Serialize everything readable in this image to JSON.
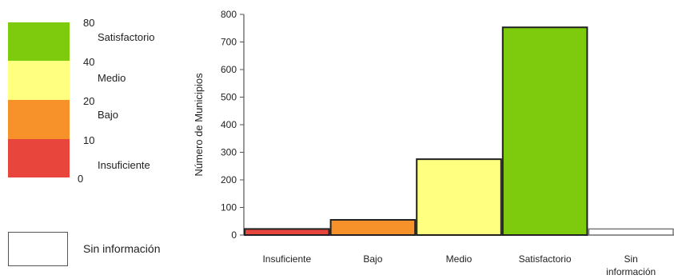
{
  "legend": {
    "bins": [
      {
        "label": "Satisfactorio",
        "upper": "80",
        "color": "#7dcb0c"
      },
      {
        "label": "Medio",
        "upper": "40",
        "color": "#ffff80"
      },
      {
        "label": "Bajo",
        "upper": "20",
        "color": "#f7922b"
      },
      {
        "label": "Insuficiente",
        "upper": "10",
        "color": "#e8453c"
      }
    ],
    "min": "0",
    "no_data_label": "Sin información"
  },
  "chart_data": {
    "type": "bar",
    "ylabel": "Número de Municipios",
    "xlabel": "",
    "ylim": [
      0,
      800
    ],
    "yticks": [
      0,
      100,
      200,
      300,
      400,
      500,
      600,
      700,
      800
    ],
    "categories": [
      "Insuficiente",
      "Bajo",
      "Medio",
      "Satisfactorio",
      "Sin información"
    ],
    "category_lines": [
      [
        "Insuficiente"
      ],
      [
        "Bajo"
      ],
      [
        "Medio"
      ],
      [
        "Satisfactorio"
      ],
      [
        "Sin",
        "información"
      ]
    ],
    "values": [
      22,
      55,
      275,
      753,
      22
    ],
    "colors": [
      "#e8453c",
      "#f7922b",
      "#ffff80",
      "#7dcb0c",
      "#ffffff"
    ],
    "grid": false
  }
}
